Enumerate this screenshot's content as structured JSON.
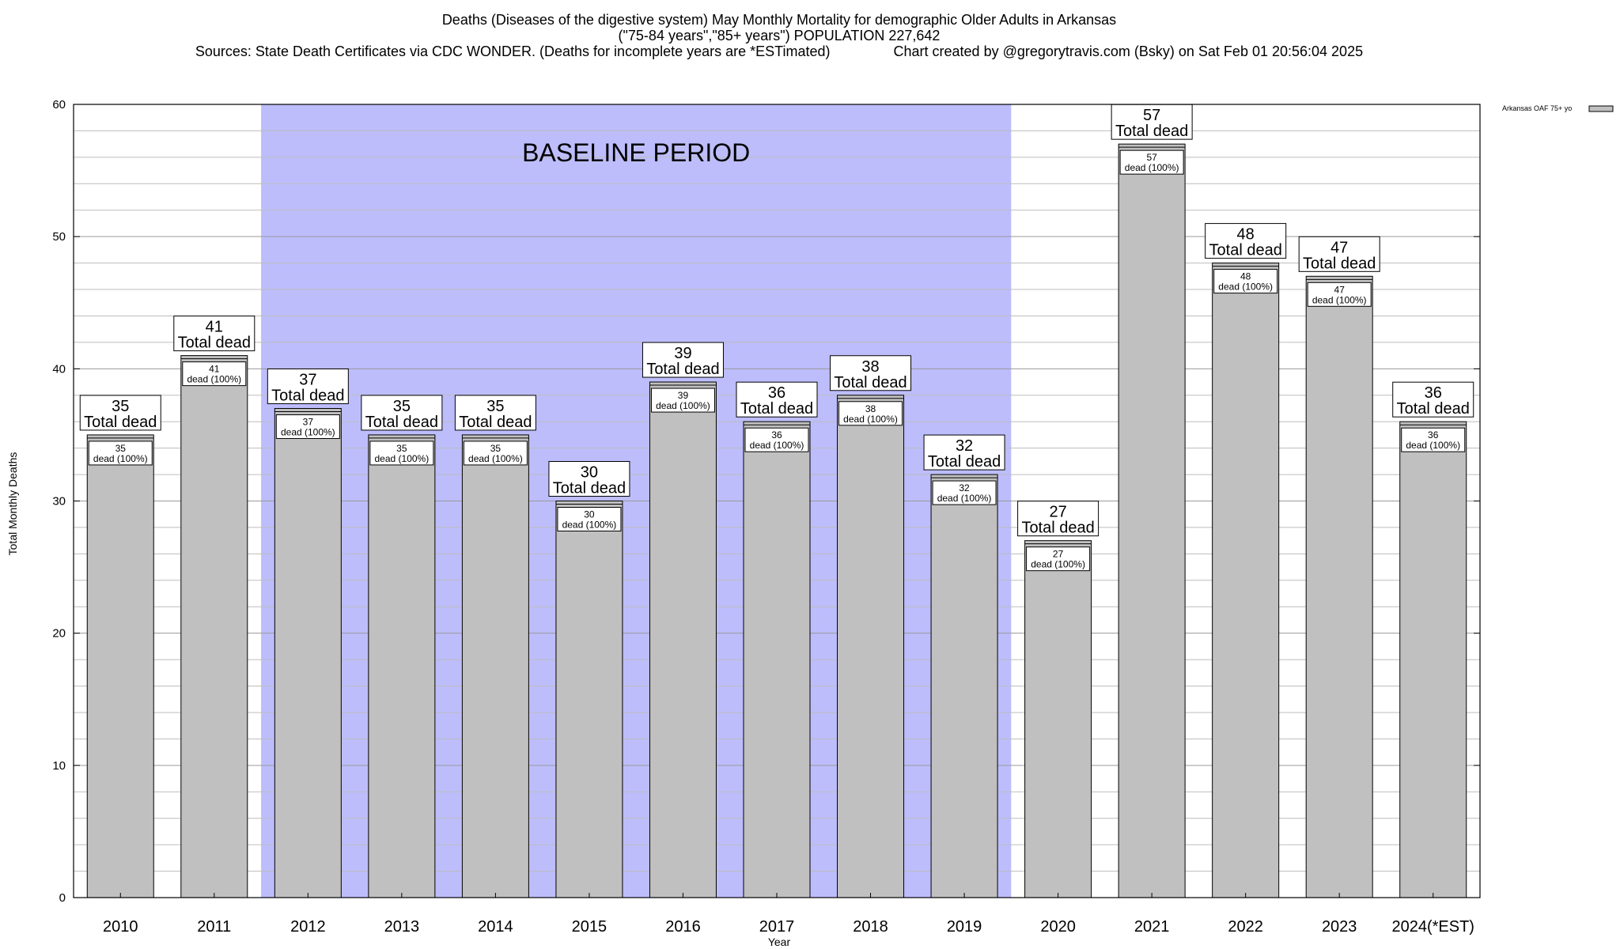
{
  "chart_data": {
    "type": "bar",
    "title_lines": [
      "Deaths (Diseases of the digestive system) May Monthly Mortality for demographic Older Adults in Arkansas",
      "(\"75-84 years\",\"85+ years\") POPULATION 227,642",
      "Sources: State Death Certificates via CDC WONDER. (Deaths for incomplete years are *ESTimated)                Chart created by @gregorytravis.com (Bsky) on Sat Feb 01 20:56:04 2025"
    ],
    "xlabel": "Year",
    "ylabel": "Total Monthly Deaths",
    "ylim": [
      0,
      60
    ],
    "yticks": [
      "0",
      "10",
      "20",
      "30",
      "40",
      "50",
      "60"
    ],
    "grid": true,
    "categories": [
      "2010",
      "2011",
      "2012",
      "2013",
      "2014",
      "2015",
      "2016",
      "2017",
      "2018",
      "2019",
      "2020",
      "2021",
      "2022",
      "2023",
      "2024(*EST)"
    ],
    "series": [
      {
        "name": "Arkansas OAF 75+ yo",
        "color": "#c0c0c0",
        "values": [
          35,
          41,
          37,
          35,
          35,
          30,
          39,
          36,
          38,
          32,
          27,
          57,
          48,
          47,
          36
        ]
      }
    ],
    "total_label_suffix": "Total dead",
    "inner_label_suffix": "dead (100%)",
    "baseline": {
      "label": "BASELINE PERIOD",
      "start": "2012",
      "end": "2019",
      "color": "#bdbdfc"
    },
    "legend": {
      "placement": "top-right",
      "label": "Arkansas OAF 75+ yo"
    }
  }
}
